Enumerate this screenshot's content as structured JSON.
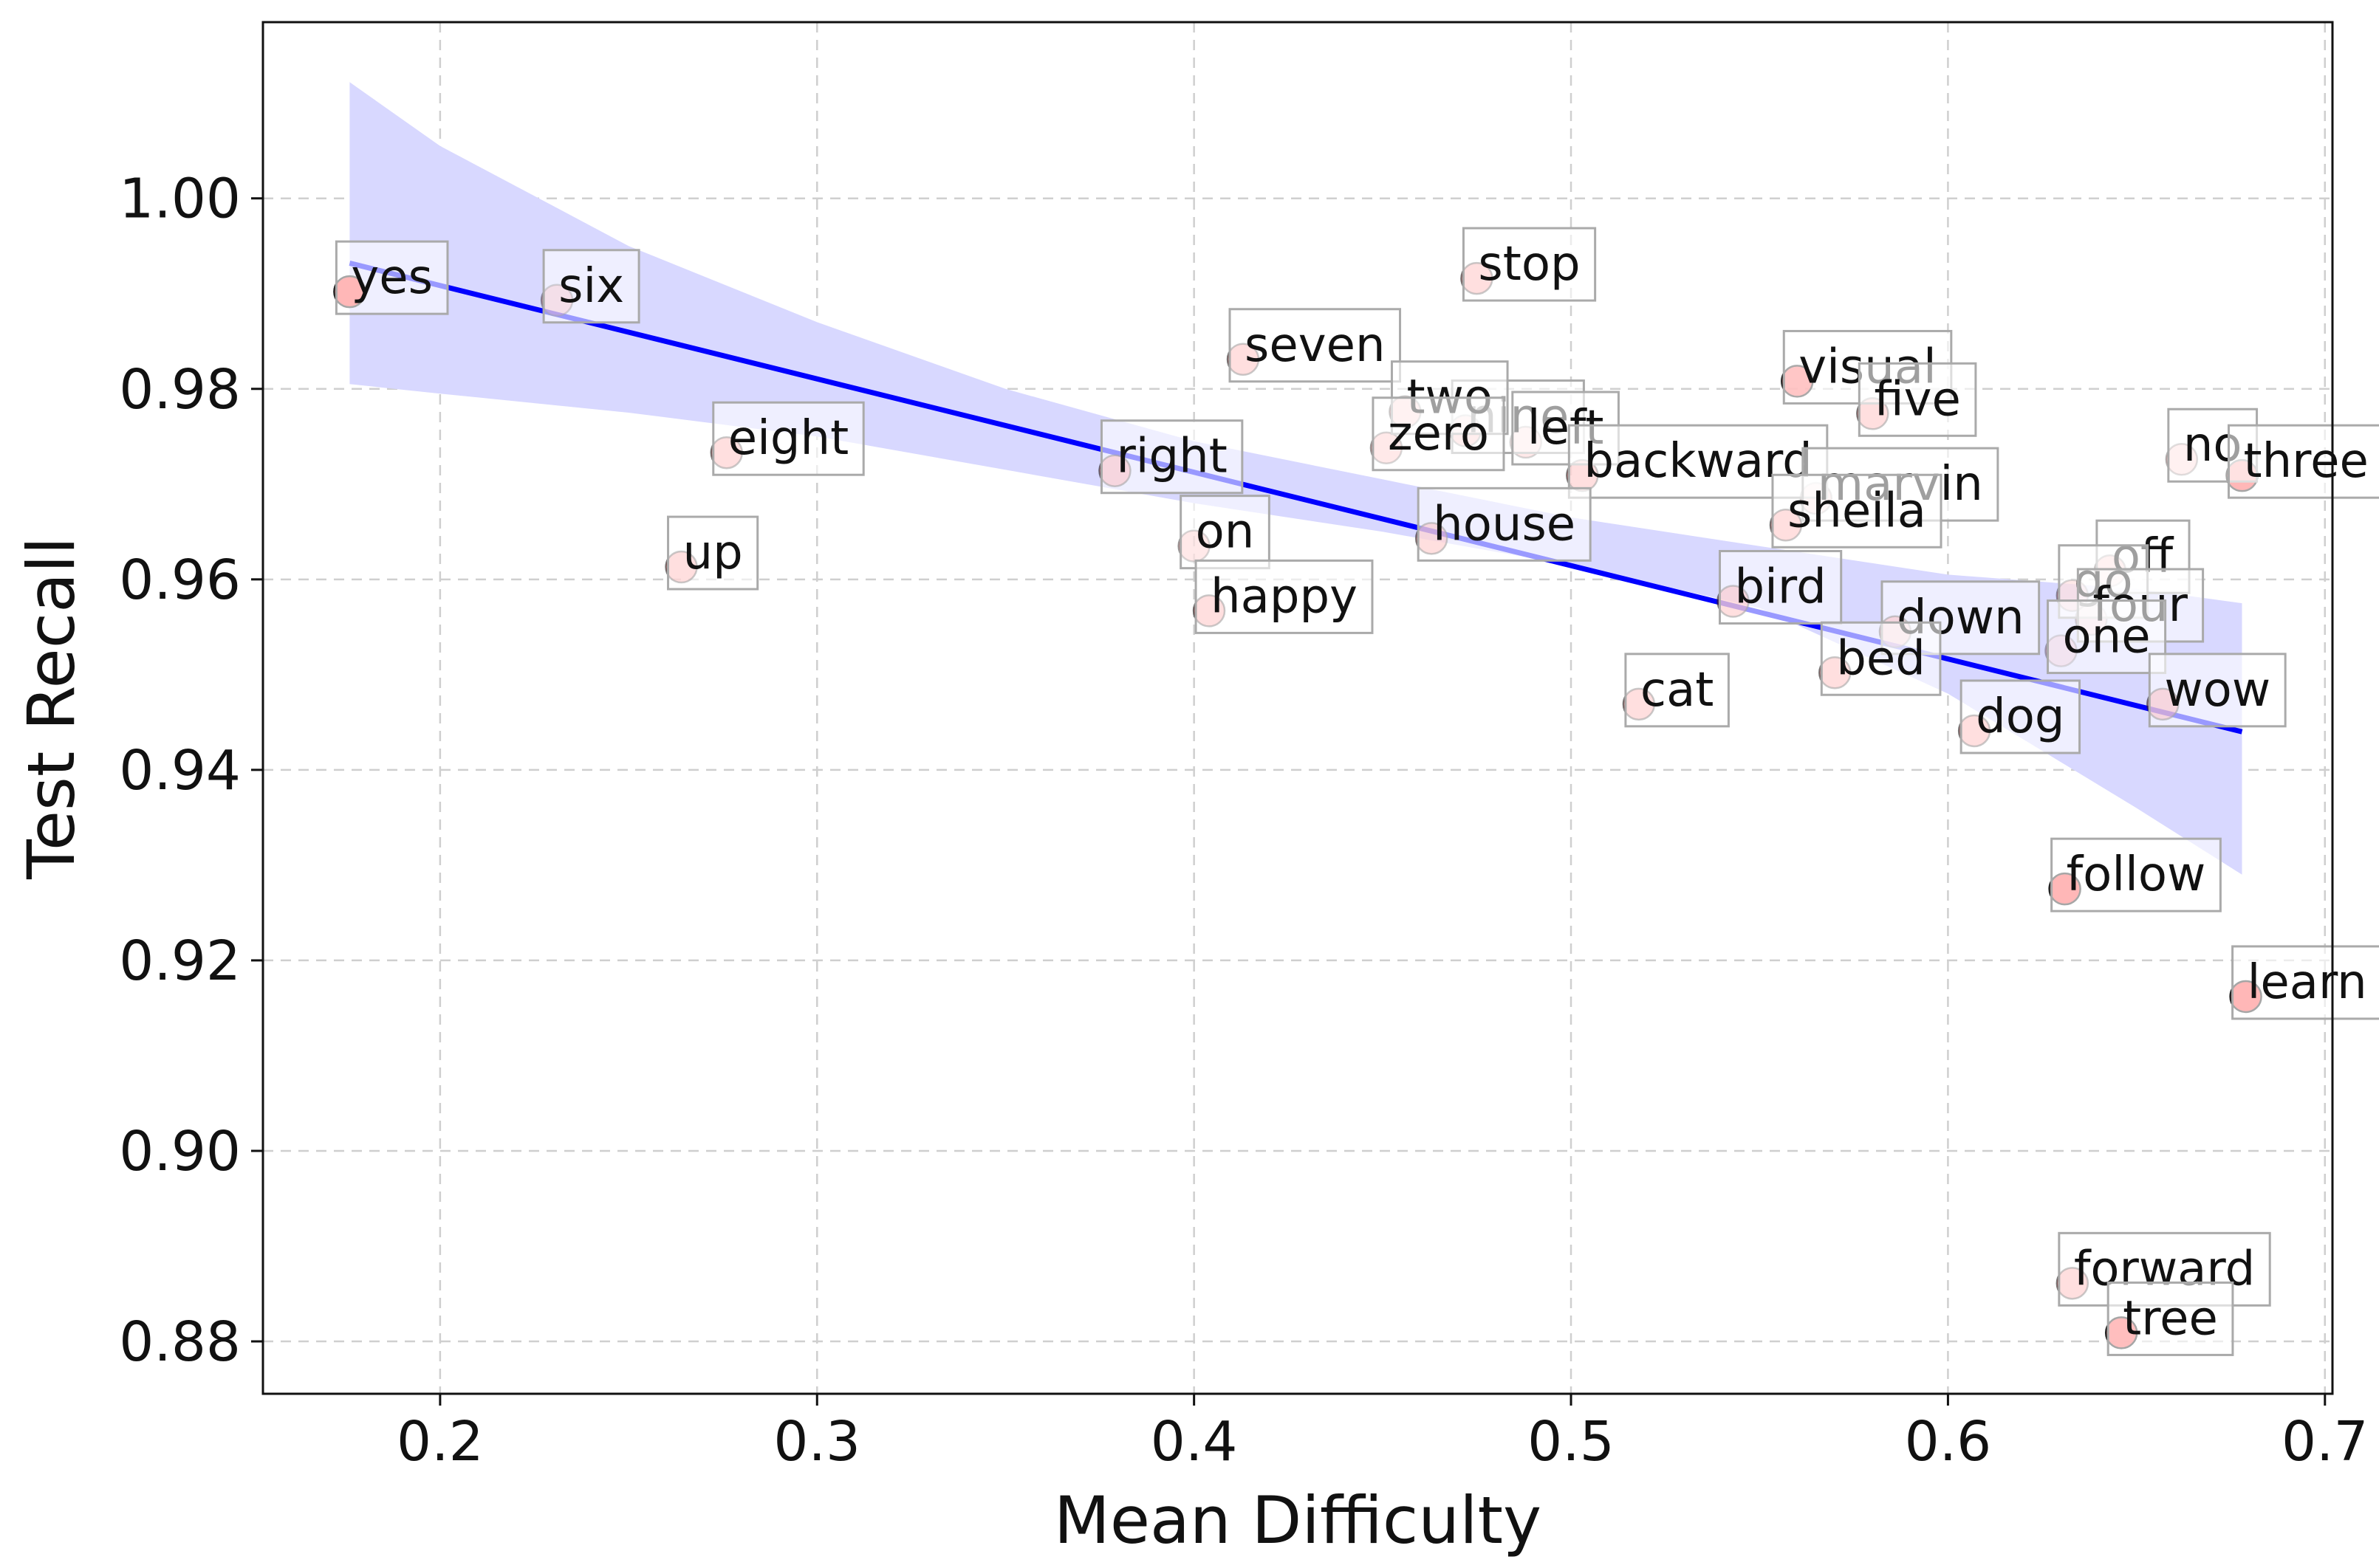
{
  "chart_data": {
    "type": "scatter",
    "xlabel": "Mean Difficulty",
    "ylabel": "Test Recall",
    "xlim": [
      0.153,
      0.702
    ],
    "ylim": [
      0.8745,
      1.0185
    ],
    "xticks": [
      0.2,
      0.3,
      0.4,
      0.5,
      0.6,
      0.7
    ],
    "xtick_labels": [
      "0.2",
      "0.3",
      "0.4",
      "0.5",
      "0.6",
      "0.7"
    ],
    "yticks": [
      0.88,
      0.9,
      0.92,
      0.94,
      0.96,
      0.98,
      1.0
    ],
    "ytick_labels": [
      "0.88",
      "0.90",
      "0.92",
      "0.94",
      "0.96",
      "0.98",
      "1.00"
    ],
    "grid": true,
    "colors": {
      "point": "#ff4d4d",
      "point_edge": "#222222",
      "trend_line": "#0000ff",
      "confidence_band": "#d8d8ff",
      "label_box_border": "#aaaaaa"
    },
    "trend_line": {
      "x": [
        0.176,
        0.678
      ],
      "y": [
        0.9932,
        0.944
      ]
    },
    "confidence_band": {
      "x": [
        0.176,
        0.2,
        0.25,
        0.3,
        0.35,
        0.4,
        0.45,
        0.5,
        0.55,
        0.6,
        0.65,
        0.678
      ],
      "upper": [
        1.0122,
        1.0055,
        0.995,
        0.987,
        0.98,
        0.9745,
        0.9705,
        0.9665,
        0.9635,
        0.9605,
        0.959,
        0.9575
      ],
      "lower": [
        0.9805,
        0.9795,
        0.9775,
        0.975,
        0.9715,
        0.968,
        0.965,
        0.9615,
        0.957,
        0.948,
        0.936,
        0.929
      ]
    },
    "points": [
      {
        "label": "yes",
        "x": 0.176,
        "y": 0.9902,
        "opacity": 1.0
      },
      {
        "label": "six",
        "x": 0.231,
        "y": 0.9893,
        "opacity": 0.3
      },
      {
        "label": "eight",
        "x": 0.276,
        "y": 0.9733,
        "opacity": 0.45
      },
      {
        "label": "up",
        "x": 0.264,
        "y": 0.9613,
        "opacity": 0.45
      },
      {
        "label": "seven",
        "x": 0.413,
        "y": 0.9831,
        "opacity": 0.45
      },
      {
        "label": "right",
        "x": 0.379,
        "y": 0.9714,
        "opacity": 0.45
      },
      {
        "label": "on",
        "x": 0.4,
        "y": 0.9635,
        "opacity": 0.3
      },
      {
        "label": "happy",
        "x": 0.404,
        "y": 0.9567,
        "opacity": 0.45
      },
      {
        "label": "stop",
        "x": 0.475,
        "y": 0.9916,
        "opacity": 0.45
      },
      {
        "label": "nine",
        "x": 0.472,
        "y": 0.9756,
        "opacity": 0.6
      },
      {
        "label": "two",
        "x": 0.456,
        "y": 0.9776,
        "opacity": 0.45
      },
      {
        "label": "left",
        "x": 0.488,
        "y": 0.9744,
        "opacity": 0.3
      },
      {
        "label": "zero",
        "x": 0.451,
        "y": 0.9738,
        "opacity": 0.3
      },
      {
        "label": "backward",
        "x": 0.503,
        "y": 0.9709,
        "opacity": 0.45
      },
      {
        "label": "house",
        "x": 0.463,
        "y": 0.9643,
        "opacity": 0.45
      },
      {
        "label": "cat",
        "x": 0.518,
        "y": 0.9469,
        "opacity": 0.45
      },
      {
        "label": "visual",
        "x": 0.56,
        "y": 0.9808,
        "opacity": 0.8
      },
      {
        "label": "five",
        "x": 0.58,
        "y": 0.9774,
        "opacity": 0.45
      },
      {
        "label": "marvin",
        "x": 0.565,
        "y": 0.9685,
        "opacity": 0.3
      },
      {
        "label": "sheila",
        "x": 0.557,
        "y": 0.9657,
        "opacity": 0.45
      },
      {
        "label": "bird",
        "x": 0.543,
        "y": 0.9577,
        "opacity": 0.45
      },
      {
        "label": "down",
        "x": 0.586,
        "y": 0.9545,
        "opacity": 0.45
      },
      {
        "label": "bed",
        "x": 0.57,
        "y": 0.9502,
        "opacity": 0.45
      },
      {
        "label": "dog",
        "x": 0.607,
        "y": 0.9441,
        "opacity": 0.45
      },
      {
        "label": "no",
        "x": 0.662,
        "y": 0.9726,
        "opacity": 0.2
      },
      {
        "label": "three",
        "x": 0.678,
        "y": 0.9709,
        "opacity": 1.0
      },
      {
        "label": "off",
        "x": 0.643,
        "y": 0.9609,
        "opacity": 0.45
      },
      {
        "label": "go",
        "x": 0.633,
        "y": 0.9583,
        "opacity": 0.3
      },
      {
        "label": "four",
        "x": 0.638,
        "y": 0.9558,
        "opacity": 0.3
      },
      {
        "label": "one",
        "x": 0.63,
        "y": 0.9525,
        "opacity": 0.2
      },
      {
        "label": "wow",
        "x": 0.657,
        "y": 0.9469,
        "opacity": 0.45
      },
      {
        "label": "follow",
        "x": 0.631,
        "y": 0.9275,
        "opacity": 1.0
      },
      {
        "label": "learn",
        "x": 0.679,
        "y": 0.9162,
        "opacity": 1.0
      },
      {
        "label": "forward",
        "x": 0.633,
        "y": 0.8861,
        "opacity": 0.45
      },
      {
        "label": "tree",
        "x": 0.646,
        "y": 0.8809,
        "opacity": 0.9
      }
    ]
  }
}
